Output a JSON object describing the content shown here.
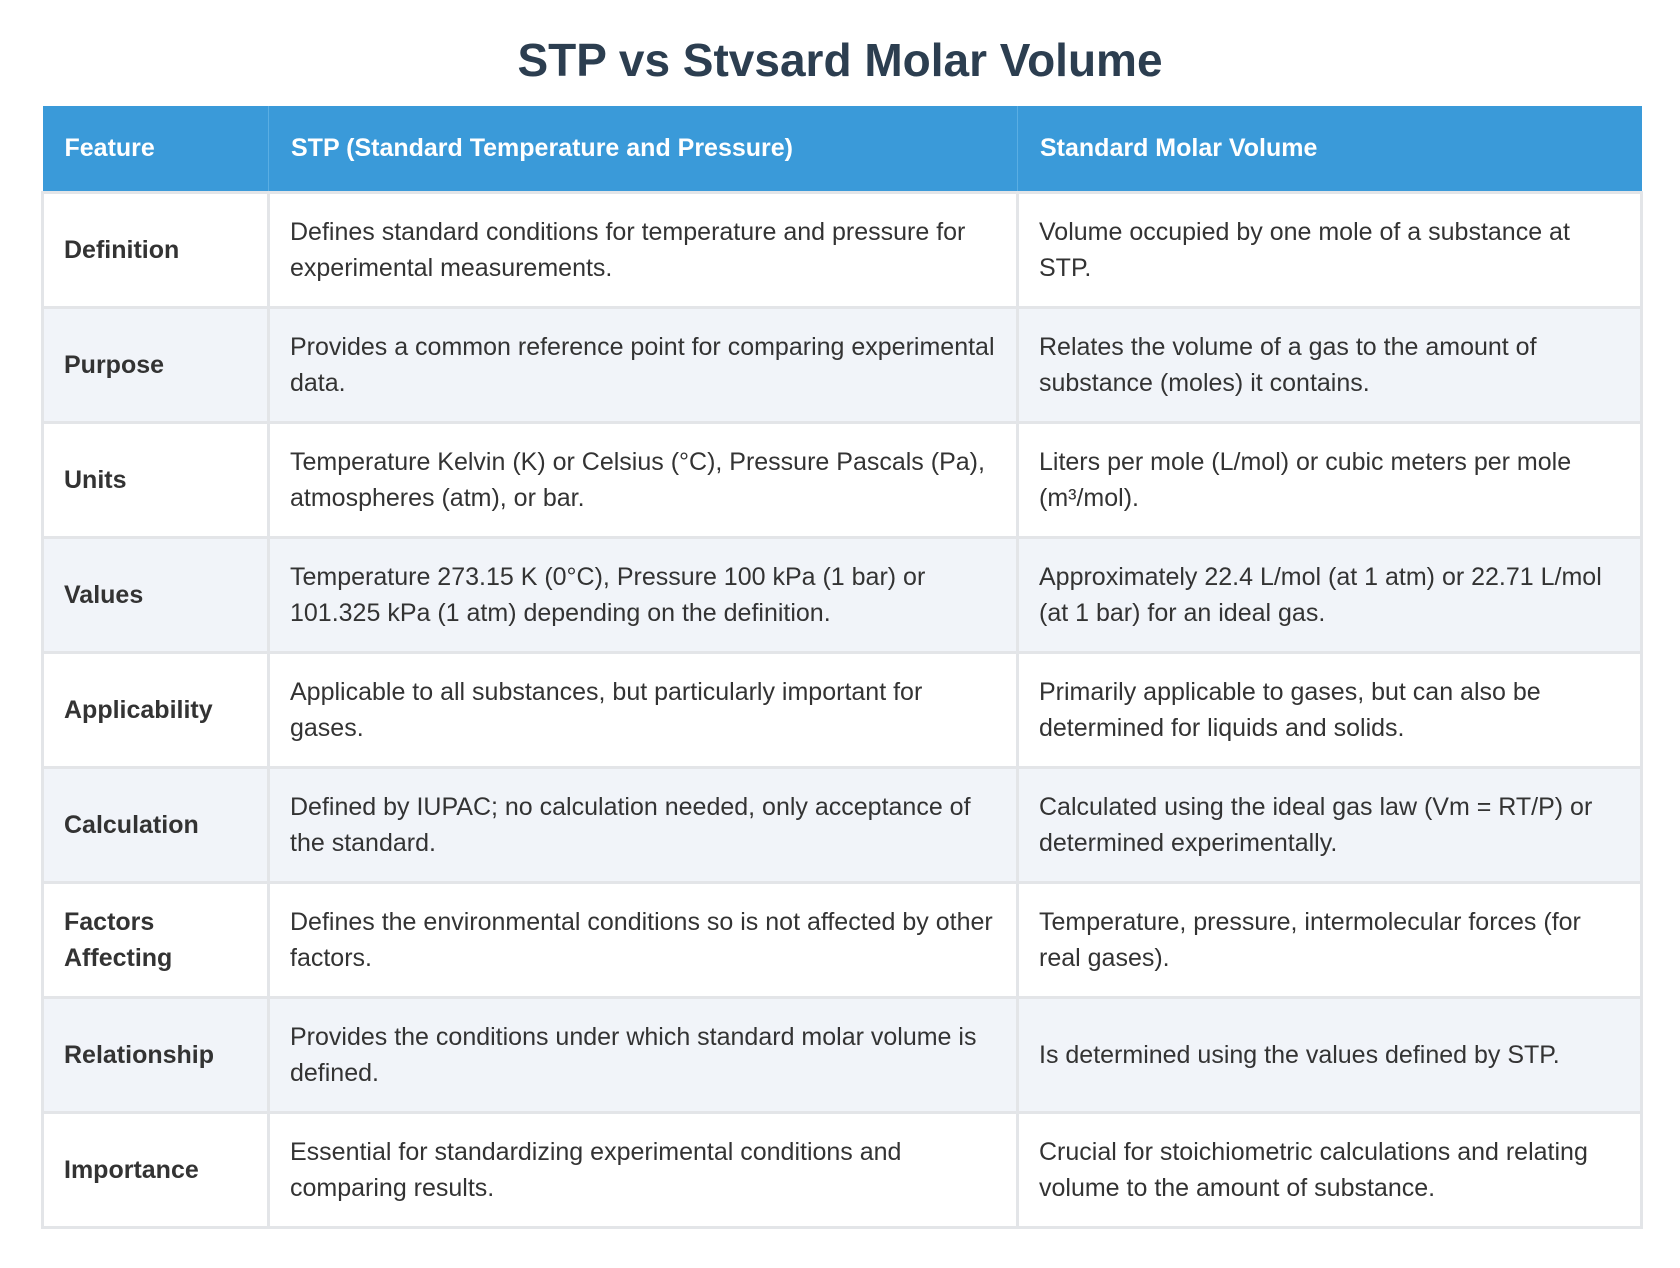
{
  "title": "STP vs Stvsard Molar Volume",
  "table": {
    "headers": [
      "Feature",
      "STP (Standard Temperature and Pressure)",
      "Standard Molar Volume"
    ],
    "rows": [
      {
        "feature": "Definition",
        "stp": "Defines standard conditions for temperature and pressure for experimental measurements.",
        "molar": "Volume occupied by one mole of a substance at STP."
      },
      {
        "feature": "Purpose",
        "stp": "Provides a common reference point for comparing experimental data.",
        "molar": "Relates the volume of a gas to the amount of substance (moles) it contains."
      },
      {
        "feature": "Units",
        "stp": "Temperature Kelvin (K) or Celsius (°C), Pressure Pascals (Pa), atmospheres (atm), or bar.",
        "molar": "Liters per mole (L/mol) or cubic meters per mole (m³/mol)."
      },
      {
        "feature": "Values",
        "stp": "Temperature 273.15 K (0°C), Pressure 100 kPa (1 bar) or 101.325 kPa (1 atm) depending on the definition.",
        "molar": "Approximately 22.4 L/mol (at 1 atm) or 22.71 L/mol (at 1 bar) for an ideal gas."
      },
      {
        "feature": "Applicability",
        "stp": "Applicable to all substances, but particularly important for gases.",
        "molar": "Primarily applicable to gases, but can also be determined for liquids and solids."
      },
      {
        "feature": "Calculation",
        "stp": "Defined by IUPAC; no calculation needed, only acceptance of the standard.",
        "molar": "Calculated using the ideal gas law (Vm = RT/P) or determined experimentally."
      },
      {
        "feature": "Factors Affecting",
        "stp": "Defines the environmental conditions so is not affected by other factors.",
        "molar": "Temperature, pressure, intermolecular forces (for real gases)."
      },
      {
        "feature": "Relationship",
        "stp": "Provides the conditions under which standard molar volume is defined.",
        "molar": "Is determined using the values defined by STP."
      },
      {
        "feature": "Importance",
        "stp": "Essential for standardizing experimental conditions and comparing results.",
        "molar": "Crucial for stoichiometric calculations and relating volume to the amount of substance."
      }
    ]
  },
  "colors": {
    "header_bg": "#3a9ad9",
    "title": "#2c3e50",
    "row_alt_bg": "#f1f4f9"
  }
}
